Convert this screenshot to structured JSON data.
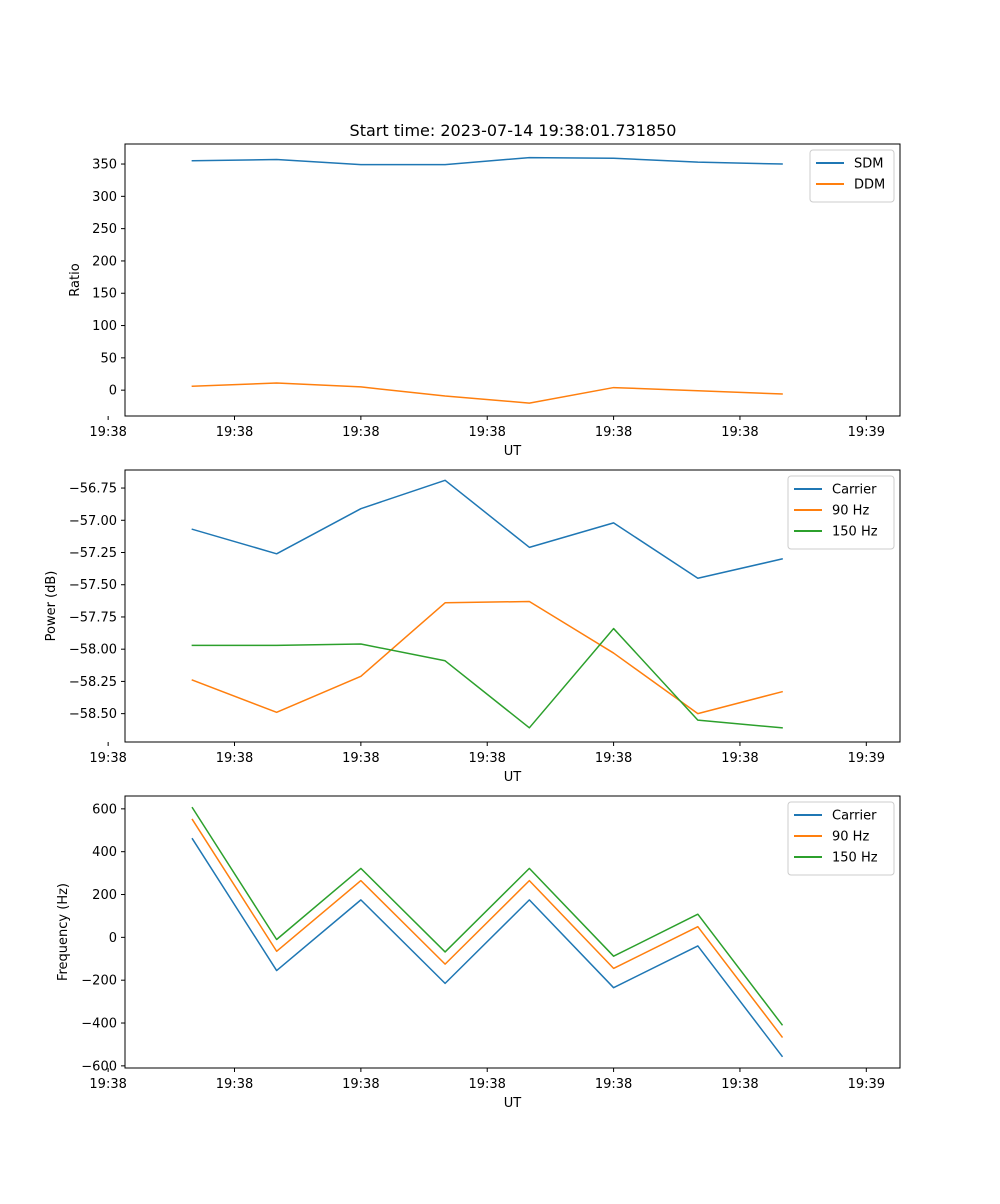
{
  "figure": {
    "title": "Start time: 2023-07-14 19:38:01.731850"
  },
  "chart_data": [
    {
      "type": "line",
      "title": "Start time: 2023-07-14 19:38:01.731850",
      "xlabel": "UT",
      "ylabel": "Ratio",
      "x_index": [
        1,
        2,
        3,
        4,
        5,
        6,
        7,
        8
      ],
      "xlim": [
        0.2,
        9.4
      ],
      "ylim": [
        -40,
        381
      ],
      "xtick_index": [
        0,
        1.5,
        3,
        4.5,
        6,
        7.5,
        9
      ],
      "xtick_labels": [
        "19:38",
        "19:38",
        "19:38",
        "19:38",
        "19:38",
        "19:38",
        "19:38"
      ],
      "xtick_edge_labels": [
        "19:38",
        "19:39"
      ],
      "yticks": [
        0,
        50,
        100,
        150,
        200,
        250,
        300,
        350
      ],
      "ytick_labels": [
        "0",
        "50",
        "100",
        "150",
        "200",
        "250",
        "300",
        "350"
      ],
      "legend_position": "upper-right",
      "series": [
        {
          "name": "SDM",
          "color": "#1f77b4",
          "values": [
            355,
            357,
            349,
            349,
            360,
            359,
            353,
            350
          ]
        },
        {
          "name": "DDM",
          "color": "#ff7f0e",
          "values": [
            6,
            11,
            5,
            -9,
            -20,
            4,
            -1,
            -6
          ]
        }
      ]
    },
    {
      "type": "line",
      "title": "",
      "xlabel": "UT",
      "ylabel": "Power (dB)",
      "x_index": [
        1,
        2,
        3,
        4,
        5,
        6,
        7,
        8
      ],
      "xlim": [
        0.2,
        9.4
      ],
      "ylim": [
        -58.72,
        -56.61
      ],
      "xtick_index": [
        0,
        1.5,
        3,
        4.5,
        6,
        7.5,
        9
      ],
      "xtick_labels": [
        "19:38",
        "19:38",
        "19:38",
        "19:38",
        "19:38",
        "19:38",
        "19:38"
      ],
      "xtick_edge_labels": [
        "19:38",
        "19:39"
      ],
      "yticks": [
        -58.5,
        -58.25,
        -58.0,
        -57.75,
        -57.5,
        -57.25,
        -57.0,
        -56.75
      ],
      "ytick_labels": [
        "−58.50",
        "−58.25",
        "−58.00",
        "−57.75",
        "−57.50",
        "−57.25",
        "−57.00",
        "−56.75"
      ],
      "legend_position": "upper-right",
      "series": [
        {
          "name": "Carrier",
          "color": "#1f77b4",
          "values": [
            -57.07,
            -57.26,
            -56.91,
            -56.69,
            -57.21,
            -57.02,
            -57.45,
            -57.3
          ]
        },
        {
          "name": "90 Hz",
          "color": "#ff7f0e",
          "values": [
            -58.24,
            -58.49,
            -58.21,
            -57.64,
            -57.63,
            -58.03,
            -58.5,
            -58.33
          ]
        },
        {
          "name": "150 Hz",
          "color": "#2ca02c",
          "values": [
            -57.97,
            -57.97,
            -57.96,
            -58.09,
            -58.61,
            -57.84,
            -58.55,
            -58.61
          ]
        }
      ]
    },
    {
      "type": "line",
      "title": "",
      "xlabel": "UT",
      "ylabel": "Frequency (Hz)",
      "x_index": [
        1,
        2,
        3,
        4,
        5,
        6,
        7,
        8
      ],
      "xlim": [
        0.2,
        9.4
      ],
      "ylim": [
        -610,
        660
      ],
      "xtick_index": [
        0,
        1.5,
        3,
        4.5,
        6,
        7.5,
        9
      ],
      "xtick_labels": [
        "19:38",
        "19:38",
        "19:38",
        "19:38",
        "19:38",
        "19:38",
        "19:38"
      ],
      "xtick_edge_labels": [
        "19:38",
        "19:39"
      ],
      "yticks": [
        -600,
        -400,
        -200,
        0,
        200,
        400,
        600
      ],
      "ytick_labels": [
        "−600",
        "−400",
        "−200",
        "0",
        "200",
        "400",
        "600"
      ],
      "legend_position": "upper-right",
      "series": [
        {
          "name": "Carrier",
          "color": "#1f77b4",
          "values": [
            460,
            -155,
            175,
            -215,
            175,
            -235,
            -40,
            -555
          ]
        },
        {
          "name": "90 Hz",
          "color": "#ff7f0e",
          "values": [
            550,
            -65,
            265,
            -125,
            265,
            -145,
            50,
            -465
          ]
        },
        {
          "name": "150 Hz",
          "color": "#2ca02c",
          "values": [
            605,
            -10,
            322,
            -68,
            322,
            -88,
            108,
            -408
          ]
        }
      ]
    }
  ]
}
